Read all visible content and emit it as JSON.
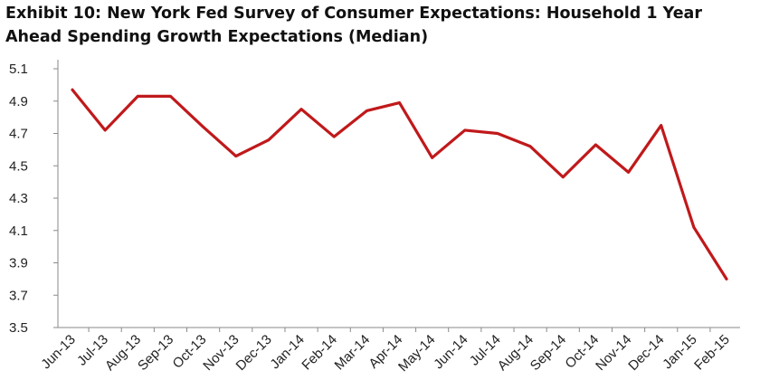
{
  "chart_data": {
    "type": "line",
    "title": "Exhibit 10: New York Fed Survey of Consumer Expectations: Household 1 Year Ahead Spending Growth Expectations (Median)",
    "xlabel": "",
    "ylabel": "",
    "categories": [
      "Jun-13",
      "Jul-13",
      "Aug-13",
      "Sep-13",
      "Oct-13",
      "Nov-13",
      "Dec-13",
      "Jan-14",
      "Feb-14",
      "Mar-14",
      "Apr-14",
      "May-14",
      "Jun-14",
      "Jul-14",
      "Aug-14",
      "Sep-14",
      "Oct-14",
      "Nov-14",
      "Dec-14",
      "Jan-15",
      "Feb-15"
    ],
    "series": [
      {
        "name": "Household 1 Year Ahead Spending Growth Expectations (Median)",
        "values": [
          4.97,
          4.72,
          4.93,
          4.93,
          4.74,
          4.56,
          4.66,
          4.85,
          4.68,
          4.84,
          4.89,
          4.55,
          4.72,
          4.7,
          4.62,
          4.43,
          4.63,
          4.46,
          4.75,
          4.12,
          3.8
        ],
        "color": "#c0191b"
      }
    ],
    "ylim": [
      3.5,
      5.1
    ],
    "yticks": [
      "3.5",
      "3.7",
      "3.9",
      "4.1",
      "4.3",
      "4.5",
      "4.7",
      "4.9",
      "5.1"
    ],
    "grid": false,
    "legend": "none"
  }
}
